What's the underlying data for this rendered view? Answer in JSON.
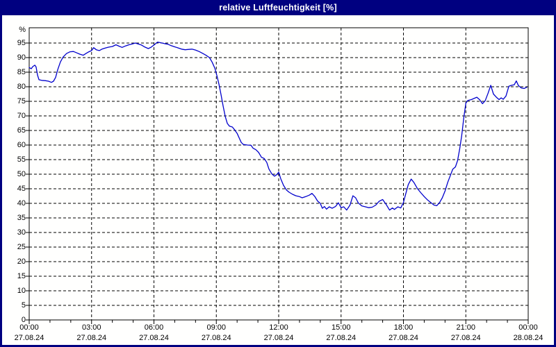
{
  "window": {
    "title": "relative Luftfeuchtigkeit [%]"
  },
  "colors": {
    "titlebar_bg": "#000080",
    "window_border": "#000080",
    "surface_bg": "#fffffe",
    "plot_frame": "#000000",
    "grid": "#000000",
    "tick_text": "#000000",
    "series_line": "#0000cc"
  },
  "chart_data": {
    "type": "line",
    "title": "relative Luftfeuchtigkeit [%]",
    "ylabel": "relative Luftfeuchtigkeit",
    "y_unit_label": "%",
    "ylim": [
      0,
      100
    ],
    "xlim_hours": [
      0,
      24
    ],
    "grid": true,
    "legend_position": "none",
    "y_ticks": [
      0,
      5,
      10,
      15,
      20,
      25,
      30,
      35,
      40,
      45,
      50,
      55,
      60,
      65,
      70,
      75,
      80,
      85,
      90,
      95
    ],
    "x_ticks": [
      {
        "hour": 0,
        "time": "00:00",
        "date": "27.08.24"
      },
      {
        "hour": 3,
        "time": "03:00",
        "date": "27.08.24"
      },
      {
        "hour": 6,
        "time": "06:00",
        "date": "27.08.24"
      },
      {
        "hour": 9,
        "time": "09:00",
        "date": "27.08.24"
      },
      {
        "hour": 12,
        "time": "12:00",
        "date": "27.08.24"
      },
      {
        "hour": 15,
        "time": "15:00",
        "date": "27.08.24"
      },
      {
        "hour": 18,
        "time": "18:00",
        "date": "27.08.24"
      },
      {
        "hour": 21,
        "time": "21:00",
        "date": "27.08.24"
      },
      {
        "hour": 24,
        "time": "00:00",
        "date": "28.08.24"
      }
    ],
    "series": [
      {
        "name": "relative Luftfeuchtigkeit",
        "color": "#0000cc",
        "points": [
          [
            0.0,
            86.6
          ],
          [
            0.1,
            86.2
          ],
          [
            0.17,
            86.9
          ],
          [
            0.27,
            87.4
          ],
          [
            0.33,
            86.8
          ],
          [
            0.4,
            84.0
          ],
          [
            0.47,
            82.4
          ],
          [
            0.6,
            82.2
          ],
          [
            0.77,
            82.1
          ],
          [
            0.93,
            81.9
          ],
          [
            1.07,
            81.5
          ],
          [
            1.17,
            81.9
          ],
          [
            1.27,
            83.2
          ],
          [
            1.37,
            85.8
          ],
          [
            1.5,
            88.5
          ],
          [
            1.63,
            90.2
          ],
          [
            1.8,
            91.4
          ],
          [
            1.97,
            92.0
          ],
          [
            2.13,
            92.1
          ],
          [
            2.3,
            91.6
          ],
          [
            2.43,
            91.2
          ],
          [
            2.6,
            90.8
          ],
          [
            2.73,
            91.4
          ],
          [
            2.87,
            92.0
          ],
          [
            3.0,
            92.4
          ],
          [
            3.1,
            93.4
          ],
          [
            3.23,
            92.7
          ],
          [
            3.37,
            92.4
          ],
          [
            3.5,
            92.9
          ],
          [
            3.67,
            93.3
          ],
          [
            3.83,
            93.6
          ],
          [
            4.0,
            93.8
          ],
          [
            4.17,
            94.4
          ],
          [
            4.33,
            93.9
          ],
          [
            4.47,
            93.5
          ],
          [
            4.63,
            94.0
          ],
          [
            4.8,
            94.4
          ],
          [
            4.97,
            94.7
          ],
          [
            5.1,
            95.0
          ],
          [
            5.23,
            94.7
          ],
          [
            5.4,
            94.3
          ],
          [
            5.57,
            93.6
          ],
          [
            5.73,
            93.1
          ],
          [
            5.87,
            93.6
          ],
          [
            6.0,
            94.3
          ],
          [
            6.17,
            95.3
          ],
          [
            6.33,
            95.1
          ],
          [
            6.5,
            94.8
          ],
          [
            6.67,
            94.6
          ],
          [
            6.83,
            94.1
          ],
          [
            7.0,
            93.7
          ],
          [
            7.17,
            93.3
          ],
          [
            7.33,
            92.9
          ],
          [
            7.5,
            92.7
          ],
          [
            7.67,
            92.8
          ],
          [
            7.83,
            92.9
          ],
          [
            8.0,
            92.6
          ],
          [
            8.17,
            92.1
          ],
          [
            8.33,
            91.5
          ],
          [
            8.5,
            90.8
          ],
          [
            8.67,
            90.0
          ],
          [
            8.8,
            88.4
          ],
          [
            8.93,
            86.3
          ],
          [
            9.03,
            83.8
          ],
          [
            9.13,
            80.8
          ],
          [
            9.23,
            77.2
          ],
          [
            9.33,
            73.3
          ],
          [
            9.43,
            69.8
          ],
          [
            9.53,
            67.4
          ],
          [
            9.63,
            66.5
          ],
          [
            9.77,
            66.2
          ],
          [
            9.87,
            65.3
          ],
          [
            10.0,
            64.0
          ],
          [
            10.1,
            62.4
          ],
          [
            10.2,
            60.9
          ],
          [
            10.3,
            60.2
          ],
          [
            10.5,
            60.0
          ],
          [
            10.67,
            59.9
          ],
          [
            10.77,
            58.9
          ],
          [
            10.9,
            58.4
          ],
          [
            11.03,
            57.5
          ],
          [
            11.17,
            55.8
          ],
          [
            11.3,
            55.4
          ],
          [
            11.43,
            54.0
          ],
          [
            11.53,
            51.8
          ],
          [
            11.67,
            50.1
          ],
          [
            11.8,
            49.3
          ],
          [
            11.9,
            49.8
          ],
          [
            12.0,
            50.7
          ],
          [
            12.1,
            48.4
          ],
          [
            12.23,
            46.2
          ],
          [
            12.37,
            44.6
          ],
          [
            12.5,
            43.8
          ],
          [
            12.67,
            43.1
          ],
          [
            12.83,
            42.6
          ],
          [
            13.0,
            42.3
          ],
          [
            13.13,
            41.9
          ],
          [
            13.3,
            42.3
          ],
          [
            13.47,
            42.8
          ],
          [
            13.6,
            43.4
          ],
          [
            13.73,
            42.4
          ],
          [
            13.87,
            40.8
          ],
          [
            14.0,
            40.0
          ],
          [
            14.1,
            38.3
          ],
          [
            14.2,
            38.9
          ],
          [
            14.3,
            38.0
          ],
          [
            14.43,
            38.8
          ],
          [
            14.57,
            38.3
          ],
          [
            14.73,
            38.9
          ],
          [
            14.87,
            40.2
          ],
          [
            15.0,
            38.5
          ],
          [
            15.13,
            38.8
          ],
          [
            15.27,
            37.7
          ],
          [
            15.43,
            39.4
          ],
          [
            15.57,
            42.6
          ],
          [
            15.7,
            41.9
          ],
          [
            15.83,
            40.1
          ],
          [
            16.0,
            39.1
          ],
          [
            16.17,
            38.8
          ],
          [
            16.33,
            38.5
          ],
          [
            16.5,
            38.7
          ],
          [
            16.67,
            39.4
          ],
          [
            16.83,
            40.7
          ],
          [
            17.0,
            41.3
          ],
          [
            17.17,
            39.6
          ],
          [
            17.33,
            37.7
          ],
          [
            17.47,
            38.4
          ],
          [
            17.57,
            37.9
          ],
          [
            17.73,
            38.8
          ],
          [
            17.87,
            38.4
          ],
          [
            18.0,
            40.3
          ],
          [
            18.1,
            43.0
          ],
          [
            18.23,
            46.4
          ],
          [
            18.37,
            48.3
          ],
          [
            18.5,
            47.2
          ],
          [
            18.67,
            45.1
          ],
          [
            18.83,
            43.7
          ],
          [
            19.0,
            42.3
          ],
          [
            19.17,
            41.1
          ],
          [
            19.33,
            40.2
          ],
          [
            19.47,
            39.4
          ],
          [
            19.6,
            39.2
          ],
          [
            19.73,
            40.2
          ],
          [
            19.87,
            41.9
          ],
          [
            20.0,
            44.2
          ],
          [
            20.13,
            47.2
          ],
          [
            20.27,
            49.8
          ],
          [
            20.37,
            51.7
          ],
          [
            20.5,
            52.5
          ],
          [
            20.6,
            54.6
          ],
          [
            20.7,
            58.5
          ],
          [
            20.8,
            63.2
          ],
          [
            20.9,
            69.3
          ],
          [
            21.0,
            74.4
          ],
          [
            21.1,
            75.3
          ],
          [
            21.27,
            75.6
          ],
          [
            21.43,
            76.1
          ],
          [
            21.53,
            76.4
          ],
          [
            21.67,
            75.5
          ],
          [
            21.8,
            74.2
          ],
          [
            21.93,
            75.2
          ],
          [
            22.07,
            77.8
          ],
          [
            22.2,
            80.5
          ],
          [
            22.33,
            77.5
          ],
          [
            22.47,
            76.4
          ],
          [
            22.6,
            75.6
          ],
          [
            22.7,
            76.2
          ],
          [
            22.8,
            75.7
          ],
          [
            22.93,
            76.8
          ],
          [
            23.07,
            80.2
          ],
          [
            23.2,
            80.5
          ],
          [
            23.33,
            80.7
          ],
          [
            23.43,
            82.0
          ],
          [
            23.53,
            80.4
          ],
          [
            23.67,
            79.6
          ],
          [
            23.8,
            79.4
          ],
          [
            23.93,
            79.8
          ]
        ]
      }
    ]
  }
}
